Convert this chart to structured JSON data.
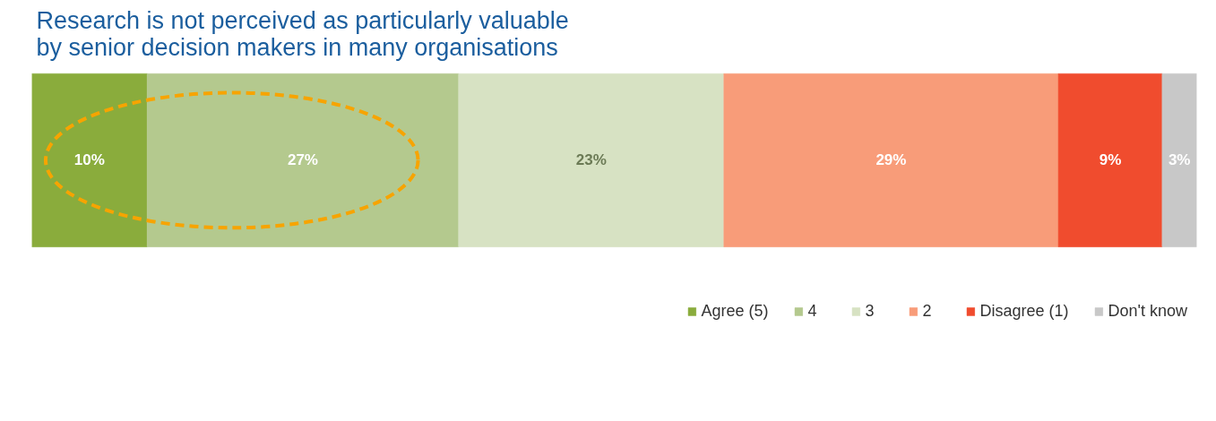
{
  "chart_data": {
    "type": "bar",
    "orientation": "horizontal",
    "stacked": true,
    "title": "Research is not perceived as particularly valuable\nby senior decision makers in many organisations",
    "categories": [
      null
    ],
    "series": [
      {
        "name": "Agree (5)",
        "color": "#8aac3c",
        "values": [
          10
        ],
        "value_labels": [
          "10%"
        ]
      },
      {
        "name": "4",
        "color": "#b4c98e",
        "values": [
          27
        ],
        "value_labels": [
          "27%"
        ]
      },
      {
        "name": "3",
        "color": "#d7e2c3",
        "values": [
          23
        ],
        "value_labels": [
          "23%"
        ]
      },
      {
        "name": "2",
        "color": "#f89c79",
        "values": [
          29
        ],
        "value_labels": [
          "29%"
        ]
      },
      {
        "name": "Disagree (1)",
        "color": "#f04c2e",
        "values": [
          9
        ],
        "value_labels": [
          "9%"
        ]
      },
      {
        "name": "Don't know",
        "color": "#c8c8c8",
        "values": [
          3
        ],
        "value_labels": [
          "3%"
        ]
      }
    ],
    "legend": "bottom right"
  }
}
